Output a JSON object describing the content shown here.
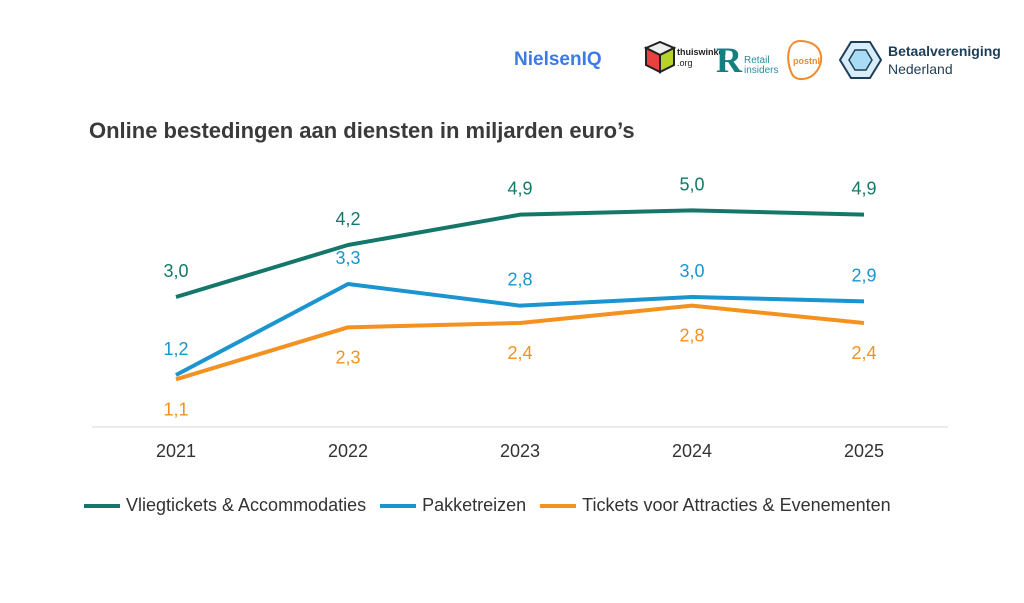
{
  "logos": {
    "nielsen": "NielsenIQ",
    "thuiswinkel": "thuiswinkel",
    "thuiswinkel_sub": ".org",
    "retail": "Retail",
    "retail_sub": "insiders",
    "postnl": "postnl",
    "betaal": "Betaalvereniging",
    "betaal_sub": "Nederland"
  },
  "chart_data": {
    "type": "line",
    "title": "Online bestedingen aan diensten in miljarden euro’s",
    "categories": [
      "2021",
      "2022",
      "2023",
      "2024",
      "2025"
    ],
    "series": [
      {
        "name": "Vliegtickets & Accommodaties",
        "color": "#15776a",
        "values": [
          3.0,
          4.2,
          4.9,
          5.0,
          4.9
        ],
        "labels": [
          "3,0",
          "4,2",
          "4,9",
          "5,0",
          "4,9"
        ]
      },
      {
        "name": "Pakketreizen",
        "color": "#1a95cf",
        "values": [
          1.2,
          3.3,
          2.8,
          3.0,
          2.9
        ],
        "labels": [
          "1,2",
          "3,3",
          "2,8",
          "3,0",
          "2,9"
        ]
      },
      {
        "name": "Tickets voor Attracties & Evenementen",
        "color": "#f39121",
        "values": [
          1.1,
          2.3,
          2.4,
          2.8,
          2.4
        ],
        "labels": [
          "1,1",
          "2,3",
          "2,4",
          "2,8",
          "2,4"
        ]
      }
    ],
    "legend": "bottom",
    "grid": false
  }
}
